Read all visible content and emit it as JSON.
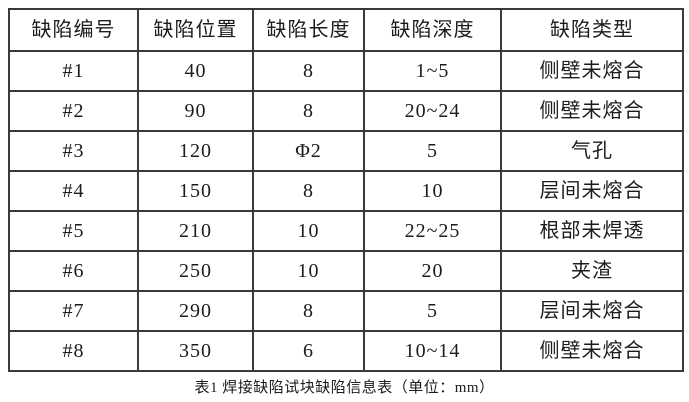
{
  "table": {
    "headers": [
      "缺陷编号",
      "缺陷位置",
      "缺陷长度",
      "缺陷深度",
      "缺陷类型"
    ],
    "rows": [
      [
        "#1",
        "40",
        "8",
        "1~5",
        "侧壁未熔合"
      ],
      [
        "#2",
        "90",
        "8",
        "20~24",
        "侧壁未熔合"
      ],
      [
        "#3",
        "120",
        "Φ2",
        "5",
        "气孔"
      ],
      [
        "#4",
        "150",
        "8",
        "10",
        "层间未熔合"
      ],
      [
        "#5",
        "210",
        "10",
        "22~25",
        "根部未焊透"
      ],
      [
        "#6",
        "250",
        "10",
        "20",
        "夹渣"
      ],
      [
        "#7",
        "290",
        "8",
        "5",
        "层间未熔合"
      ],
      [
        "#8",
        "350",
        "6",
        "10~14",
        "侧壁未熔合"
      ]
    ]
  },
  "caption": "表1 焊接缺陷试块缺陷信息表（单位：mm）",
  "colors": {
    "border": "#3a3a3a",
    "text": "#1c1c1c",
    "background": "#ffffff"
  }
}
